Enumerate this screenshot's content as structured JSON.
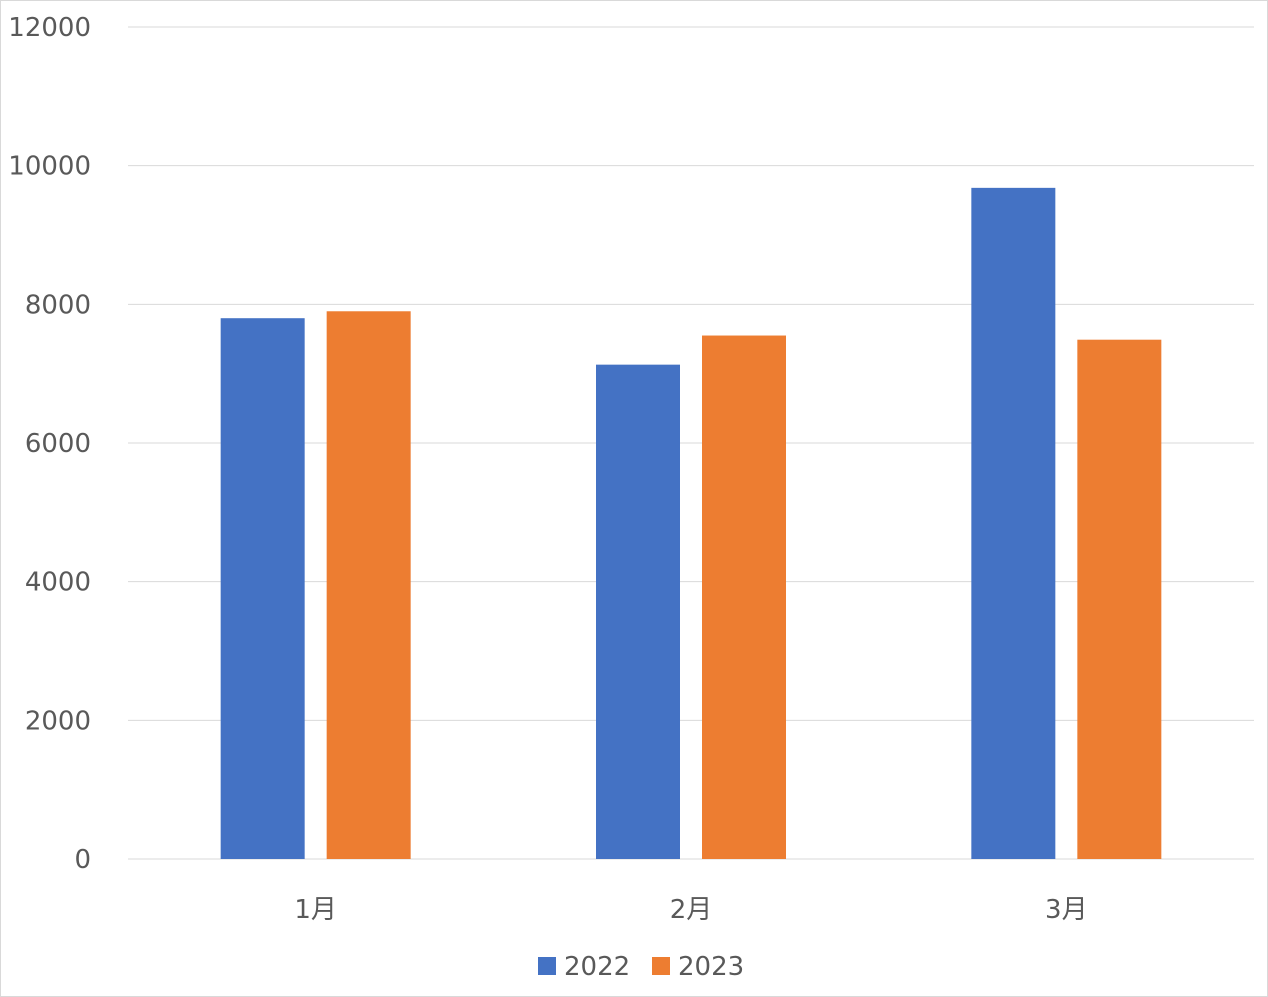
{
  "chart_data": {
    "type": "bar",
    "categories": [
      "1月",
      "2月",
      "3月"
    ],
    "series": [
      {
        "name": "2022",
        "values": [
          7800,
          7130,
          9680
        ],
        "color": "#4472c4"
      },
      {
        "name": "2023",
        "values": [
          7900,
          7550,
          7490
        ],
        "color": "#ed7d31"
      }
    ],
    "ylim": [
      0,
      12000
    ],
    "yticks": [
      0,
      2000,
      4000,
      6000,
      8000,
      10000,
      12000
    ],
    "grid": true,
    "legend_position": "bottom"
  }
}
